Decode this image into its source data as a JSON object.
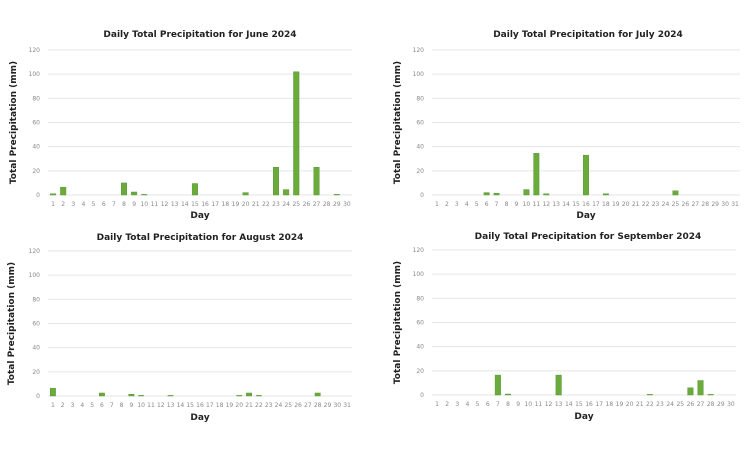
{
  "chart_data": [
    {
      "type": "bar",
      "title": "Daily Total Precipitation for June 2024",
      "xlabel": "Day",
      "ylabel": "Total Precipitation (mm)",
      "ylim": [
        0,
        120
      ],
      "yticks": [
        0,
        20,
        40,
        60,
        80,
        100,
        120
      ],
      "grid": true,
      "categories": [
        "1",
        "2",
        "3",
        "4",
        "5",
        "6",
        "7",
        "8",
        "9",
        "10",
        "11",
        "12",
        "13",
        "14",
        "15",
        "16",
        "17",
        "18",
        "19",
        "20",
        "21",
        "22",
        "23",
        "24",
        "25",
        "26",
        "27",
        "28",
        "29",
        "30"
      ],
      "values": [
        1,
        6.5,
        0,
        0,
        0,
        0,
        0,
        10,
        2.5,
        0.5,
        0,
        0,
        0,
        0,
        9.5,
        0,
        0,
        0,
        0,
        2,
        0,
        0,
        23,
        4.5,
        102,
        0,
        23,
        0,
        0.5,
        0
      ]
    },
    {
      "type": "bar",
      "title": "Daily Total Precipitation for July 2024",
      "xlabel": "Day",
      "ylabel": "Total Precipitation (mm)",
      "ylim": [
        0,
        120
      ],
      "yticks": [
        0,
        20,
        40,
        60,
        80,
        100,
        120
      ],
      "grid": true,
      "categories": [
        "1",
        "2",
        "3",
        "4",
        "5",
        "6",
        "7",
        "8",
        "9",
        "10",
        "11",
        "12",
        "13",
        "14",
        "15",
        "16",
        "17",
        "18",
        "19",
        "20",
        "21",
        "22",
        "23",
        "24",
        "25",
        "26",
        "27",
        "28",
        "29",
        "30",
        "31"
      ],
      "values": [
        0,
        0,
        0,
        0,
        0,
        2,
        1.5,
        0,
        0,
        4.5,
        34.5,
        1,
        0,
        0,
        0,
        33,
        0,
        1,
        0,
        0,
        0,
        0,
        0,
        0,
        3.5,
        0,
        0,
        0,
        0,
        0,
        0
      ]
    },
    {
      "type": "bar",
      "title": "Daily Total Precipitation for August 2024",
      "xlabel": "Day",
      "ylabel": "Total Precipitation (mm)",
      "ylim": [
        0,
        120
      ],
      "yticks": [
        0,
        20,
        40,
        60,
        80,
        100,
        120
      ],
      "grid": true,
      "categories": [
        "1",
        "2",
        "3",
        "4",
        "5",
        "6",
        "7",
        "8",
        "9",
        "10",
        "11",
        "12",
        "13",
        "14",
        "15",
        "16",
        "17",
        "18",
        "19",
        "20",
        "21",
        "22",
        "23",
        "24",
        "25",
        "26",
        "27",
        "28",
        "29",
        "30",
        "31"
      ],
      "values": [
        6.5,
        0,
        0,
        0,
        0,
        2.5,
        0,
        0,
        1.5,
        0.3,
        0,
        0,
        0.5,
        0,
        0,
        0,
        0,
        0,
        0,
        0.5,
        2.5,
        0.5,
        0,
        0,
        0,
        0,
        0,
        2.5,
        0,
        0,
        0
      ]
    },
    {
      "type": "bar",
      "title": "Daily Total Precipitation for September 2024",
      "xlabel": "Day",
      "ylabel": "Total Precipitation (mm)",
      "ylim": [
        0,
        120
      ],
      "yticks": [
        0,
        20,
        40,
        60,
        80,
        100,
        120
      ],
      "grid": true,
      "categories": [
        "1",
        "2",
        "3",
        "4",
        "5",
        "6",
        "7",
        "8",
        "9",
        "10",
        "11",
        "12",
        "13",
        "14",
        "15",
        "16",
        "17",
        "18",
        "19",
        "20",
        "21",
        "22",
        "23",
        "24",
        "25",
        "26",
        "27",
        "28",
        "29",
        "30"
      ],
      "values": [
        0,
        0,
        0,
        0,
        0,
        0,
        16.5,
        0.8,
        0,
        0,
        0,
        0,
        16.5,
        0,
        0,
        0,
        0,
        0,
        0,
        0,
        0,
        0.5,
        0,
        0,
        0,
        6,
        12,
        0.5,
        0,
        0
      ]
    }
  ],
  "colors": {
    "bar": "#6aab3c",
    "bar_dark": "#4f8f2a",
    "grid": "#e6e6e6",
    "tick": "#888888"
  }
}
